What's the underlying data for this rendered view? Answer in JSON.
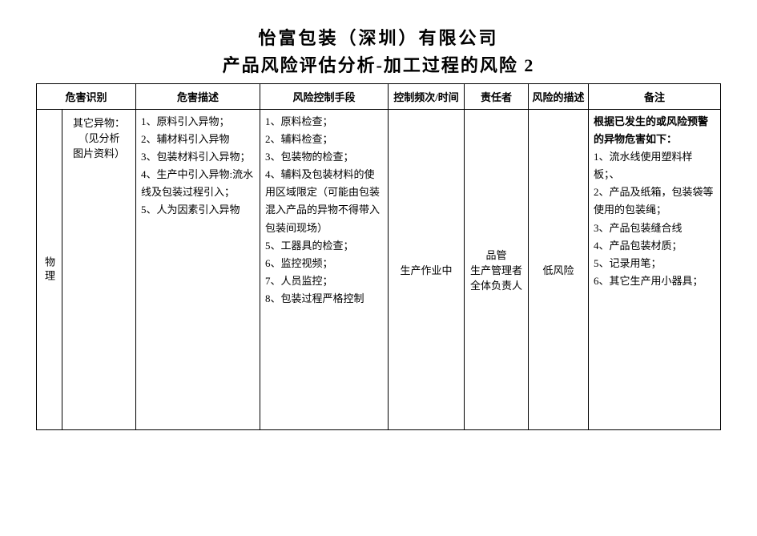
{
  "title": {
    "line1": "怡富包装（深圳）有限公司",
    "line2": "产品风险评估分析-加工过程的风险 2"
  },
  "headers": {
    "category": "",
    "id": "危害识别",
    "desc": "危害描述",
    "control": "风险控制手段",
    "freq": "控制频次/时间",
    "resp": "责任者",
    "riskdesc": "风险的描述",
    "remark": "备注"
  },
  "row": {
    "category": "物理",
    "id_line1": "其它异物：",
    "id_line2": "（见分析",
    "id_line3": "图片资料）",
    "desc_items": [
      "1、原料引入异物；",
      "2、辅材料引入异物",
      "3、包装材料引入异物；",
      "4、生产中引入异物:流水线及包装过程引入；",
      "5、人为因素引入异物"
    ],
    "control_items": [
      "1、原料检查；",
      "2、辅料检查；",
      "3、包装物的检查；",
      "4、辅料及包装材料的使用区域限定（可能由包装混入产品的异物不得带入包装间现场）",
      "5、工器具的检查；",
      "6、监控视频；",
      "7、人员监控；",
      "8、包装过程严格控制"
    ],
    "freq": "生产作业中",
    "resp_line1": "品管",
    "resp_line2": "生产管理者",
    "resp_line3": "全体负责人",
    "riskdesc": "低风险",
    "remark_bold1": "根据已发生的或风险预警",
    "remark_bold2": "的异物危害如下：",
    "remark_items": [
      "1、流水线使用塑料样板；、",
      "2、产品及纸箱，包装袋等使用的包装绳；",
      "3、产品包装缝合线",
      "4、产品包装材质；",
      "5、记录用笔；",
      "6、其它生产用小器具；"
    ]
  }
}
